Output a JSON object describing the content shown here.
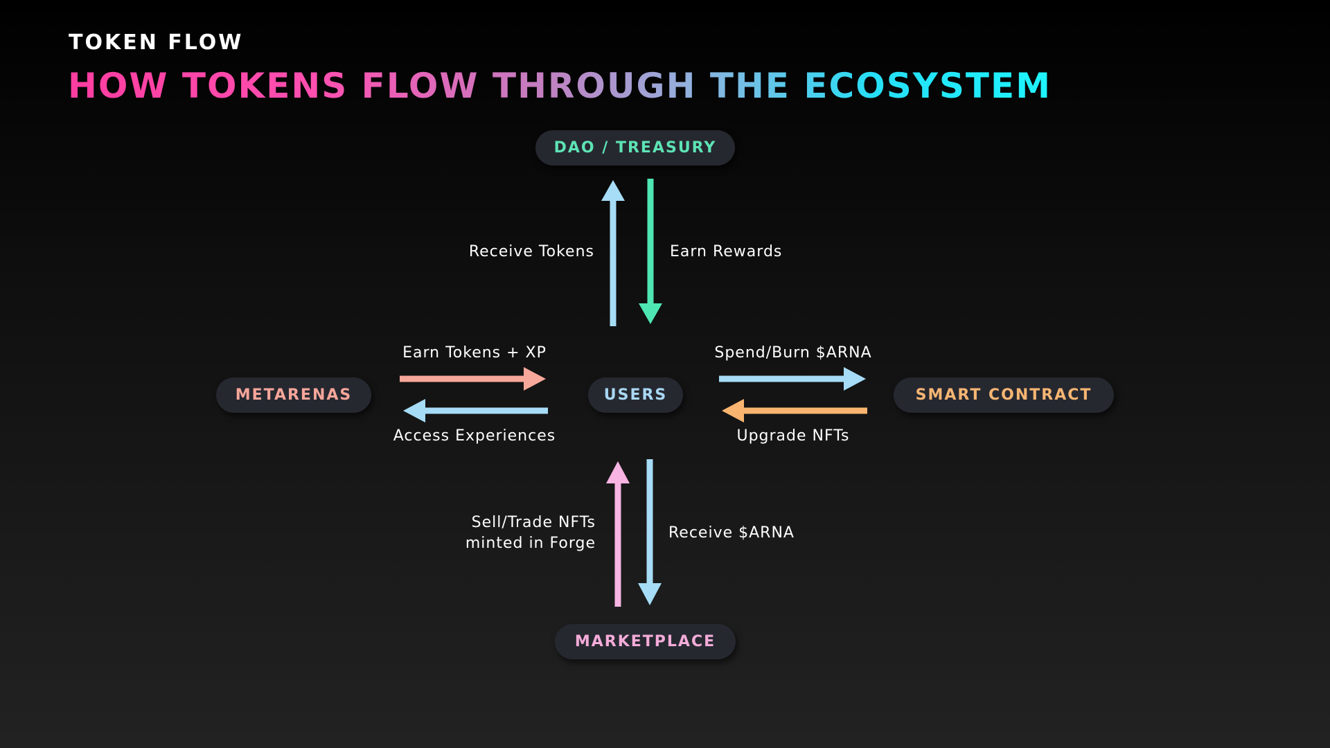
{
  "header": {
    "eyebrow": "TOKEN FLOW",
    "title": "HOW TOKENS FLOW THROUGH THE ECOSYSTEM"
  },
  "nodes": {
    "dao": {
      "label": "DAO / TREASURY",
      "color": "#5de3b4"
    },
    "users": {
      "label": "USERS",
      "color": "#a9d8f3"
    },
    "metarenas": {
      "label": "METARENAS",
      "color": "#f7a69a"
    },
    "smart_contract": {
      "label": "SMART CONTRACT",
      "color": "#f6b673"
    },
    "marketplace": {
      "label": "MARKETPLACE",
      "color": "#f4acd9"
    }
  },
  "flows": {
    "receive_tokens": {
      "label": "Receive Tokens",
      "color": "#a6dcf6"
    },
    "earn_rewards": {
      "label": "Earn Rewards",
      "color": "#4ee6b2"
    },
    "earn_tokens_xp": {
      "label": "Earn Tokens + XP",
      "color": "#f8a89a"
    },
    "access_experiences": {
      "label": "Access Experiences",
      "color": "#a6dcf6"
    },
    "spend_burn": {
      "label": "Spend/Burn $ARNA",
      "color": "#a6dcf6"
    },
    "upgrade_nfts": {
      "label": "Upgrade NFTs",
      "color": "#f9b56f"
    },
    "sell_trade": {
      "label_line1": "Sell/Trade NFTs",
      "label_line2": "minted in Forge",
      "color": "#f8b4e2"
    },
    "receive_arna": {
      "label": "Receive $ARNA",
      "color": "#a6dcf6"
    }
  }
}
